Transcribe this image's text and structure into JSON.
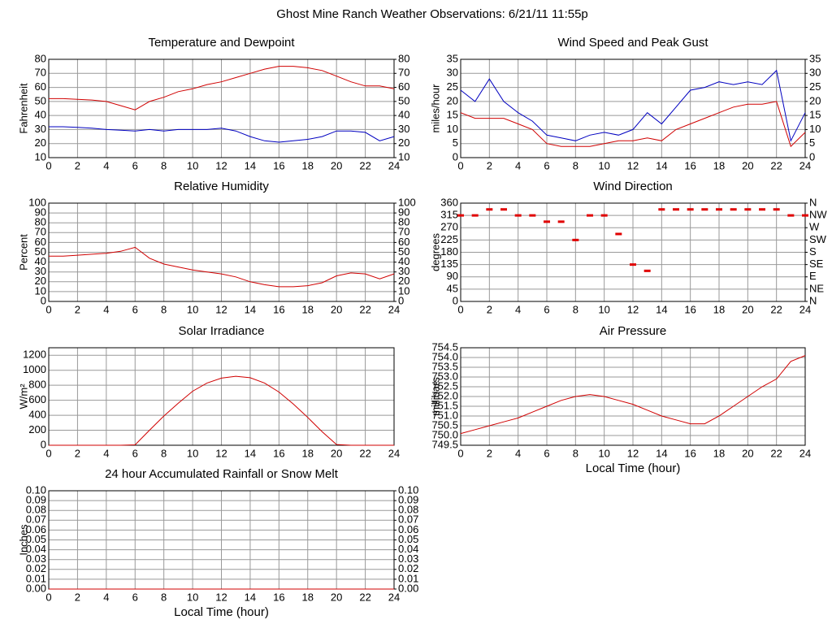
{
  "title": "Ghost Mine Ranch Weather Observations: 6/21/11 11:55p",
  "chart_data": [
    {
      "type": "line",
      "title": "Temperature and Dewpoint",
      "ylabel": "Fahrenheit",
      "grid": true,
      "x": [
        0,
        1,
        2,
        3,
        4,
        5,
        6,
        7,
        8,
        9,
        10,
        11,
        12,
        13,
        14,
        15,
        16,
        17,
        18,
        19,
        20,
        21,
        22,
        23,
        24
      ],
      "series": [
        {
          "color": "#d00000",
          "values": [
            52,
            52,
            51.5,
            51,
            50,
            47,
            44,
            50,
            53,
            57,
            59,
            62,
            64,
            67,
            70,
            73,
            75,
            75,
            74,
            72,
            68,
            64,
            61,
            61,
            59
          ]
        },
        {
          "color": "#0000c0",
          "values": [
            32,
            32,
            31.5,
            31,
            30,
            29.5,
            29,
            30,
            29,
            30,
            30,
            30,
            31,
            29,
            25,
            22,
            21,
            22,
            23,
            25,
            29,
            29,
            28,
            22,
            25
          ]
        }
      ],
      "xlim": [
        0,
        24
      ],
      "xticks": [
        0,
        2,
        4,
        6,
        8,
        10,
        12,
        14,
        16,
        18,
        20,
        22,
        24
      ],
      "ylim": [
        10,
        80
      ],
      "yticks": [
        10,
        20,
        30,
        40,
        50,
        60,
        70,
        80
      ],
      "y2lim": [
        10,
        80
      ],
      "y2ticks": [
        10,
        20,
        30,
        40,
        50,
        60,
        70,
        80
      ]
    },
    {
      "type": "line",
      "title": "Relative Humidity",
      "ylabel": "Percent",
      "grid": true,
      "x": [
        0,
        1,
        2,
        3,
        4,
        5,
        6,
        7,
        8,
        9,
        10,
        11,
        12,
        13,
        14,
        15,
        16,
        17,
        18,
        19,
        20,
        21,
        22,
        23,
        24
      ],
      "series": [
        {
          "color": "#d00000",
          "values": [
            46,
            46,
            47,
            48,
            49,
            51,
            55,
            44,
            38,
            35,
            32,
            30,
            28,
            25,
            20,
            17,
            15,
            15,
            16,
            19,
            26,
            29,
            28,
            23,
            28
          ]
        }
      ],
      "xlim": [
        0,
        24
      ],
      "xticks": [
        0,
        2,
        4,
        6,
        8,
        10,
        12,
        14,
        16,
        18,
        20,
        22,
        24
      ],
      "ylim": [
        0,
        100
      ],
      "yticks": [
        0,
        10,
        20,
        30,
        40,
        50,
        60,
        70,
        80,
        90,
        100
      ],
      "y2lim": [
        0,
        100
      ],
      "y2ticks": [
        0,
        10,
        20,
        30,
        40,
        50,
        60,
        70,
        80,
        90,
        100
      ]
    },
    {
      "type": "line",
      "title": "Solar Irradiance",
      "ylabel": "W/m²",
      "grid": true,
      "x": [
        0,
        1,
        2,
        3,
        4,
        5,
        6,
        7,
        8,
        9,
        10,
        11,
        12,
        13,
        14,
        15,
        16,
        17,
        18,
        19,
        20,
        21,
        22,
        23,
        24
      ],
      "series": [
        {
          "color": "#d00000",
          "values": [
            0,
            0,
            0,
            0,
            0,
            0,
            5,
            200,
            390,
            560,
            720,
            830,
            895,
            920,
            900,
            830,
            710,
            550,
            370,
            180,
            10,
            0,
            0,
            0,
            0
          ]
        }
      ],
      "xlim": [
        0,
        24
      ],
      "xticks": [
        0,
        2,
        4,
        6,
        8,
        10,
        12,
        14,
        16,
        18,
        20,
        22,
        24
      ],
      "ylim": [
        0,
        1300
      ],
      "yticks": [
        0,
        200,
        400,
        600,
        800,
        1000,
        1200
      ]
    },
    {
      "type": "line",
      "title": "24 hour Accumulated Rainfall or Snow Melt",
      "ylabel": "Inches",
      "xlabel": "Local Time (hour)",
      "grid": true,
      "x": [
        0,
        1,
        2,
        3,
        4,
        5,
        6,
        7,
        8,
        9,
        10,
        11,
        12,
        13,
        14,
        15,
        16,
        17,
        18,
        19,
        20,
        21,
        22,
        23,
        24
      ],
      "series": [
        {
          "color": "#d00000",
          "values": [
            0,
            0,
            0,
            0,
            0,
            0,
            0,
            0,
            0,
            0,
            0,
            0,
            0,
            0,
            0,
            0,
            0,
            0,
            0,
            0,
            0,
            0,
            0,
            0,
            0
          ]
        }
      ],
      "xlim": [
        0,
        24
      ],
      "xticks": [
        0,
        2,
        4,
        6,
        8,
        10,
        12,
        14,
        16,
        18,
        20,
        22,
        24
      ],
      "ylim": [
        0,
        0.1
      ],
      "yticks": [
        {
          "value": 0,
          "label": "0.00"
        },
        0.01,
        0.02,
        0.03,
        0.04,
        0.05,
        0.06,
        0.07,
        0.08,
        0.09,
        {
          "value": 0.1,
          "label": "0.10"
        }
      ],
      "y2lim": [
        0,
        0.1
      ],
      "y2ticks": [
        {
          "value": 0,
          "label": "0.00"
        },
        0.01,
        0.02,
        0.03,
        0.04,
        0.05,
        0.06,
        0.07,
        0.08,
        0.09,
        {
          "value": 0.1,
          "label": "0.10"
        }
      ]
    },
    {
      "type": "line",
      "title": "Wind Speed and Peak Gust",
      "ylabel": "miles/hour",
      "grid": true,
      "x": [
        0,
        1,
        2,
        3,
        4,
        5,
        6,
        7,
        8,
        9,
        10,
        11,
        12,
        13,
        14,
        15,
        16,
        17,
        18,
        19,
        20,
        21,
        22,
        23,
        24
      ],
      "series": [
        {
          "color": "#d00000",
          "values": [
            16,
            14,
            14,
            14,
            12,
            10,
            5,
            4,
            4,
            4,
            5,
            6,
            6,
            7,
            6,
            10,
            12,
            14,
            16,
            18,
            19,
            19,
            20,
            4,
            9
          ]
        },
        {
          "color": "#0000c0",
          "values": [
            24,
            20,
            28,
            20,
            16,
            13,
            8,
            7,
            6,
            8,
            9,
            8,
            10,
            16,
            12,
            18,
            24,
            25,
            27,
            26,
            27,
            26,
            31,
            6,
            16
          ]
        }
      ],
      "xlim": [
        0,
        24
      ],
      "xticks": [
        0,
        2,
        4,
        6,
        8,
        10,
        12,
        14,
        16,
        18,
        20,
        22,
        24
      ],
      "ylim": [
        0,
        35
      ],
      "yticks": [
        0,
        5,
        10,
        15,
        20,
        25,
        30,
        35
      ],
      "y2lim": [
        0,
        35
      ],
      "y2ticks": [
        0,
        5,
        10,
        15,
        20,
        25,
        30,
        35
      ]
    },
    {
      "type": "scatter",
      "title": "Wind Direction",
      "ylabel": "degrees",
      "grid": true,
      "x": [
        0,
        1,
        2,
        3,
        4,
        5,
        6,
        7,
        8,
        9,
        10,
        11,
        12,
        13,
        14,
        15,
        16,
        17,
        18,
        19,
        20,
        21,
        22,
        23,
        24
      ],
      "series": [
        {
          "color": "#e00000",
          "values": [
            315,
            315,
            337,
            337,
            315,
            315,
            292,
            292,
            225,
            315,
            315,
            247,
            135,
            112,
            337,
            337,
            337,
            337,
            337,
            337,
            337,
            337,
            337,
            315,
            315
          ]
        }
      ],
      "xlim": [
        0,
        24
      ],
      "xticks": [
        0,
        2,
        4,
        6,
        8,
        10,
        12,
        14,
        16,
        18,
        20,
        22,
        24
      ],
      "ylim": [
        0,
        360
      ],
      "yticks": [
        0,
        45,
        90,
        135,
        180,
        225,
        270,
        315,
        360
      ],
      "y2lim": [
        0,
        360
      ],
      "y2ticks": [
        {
          "value": 0,
          "label": "N"
        },
        {
          "value": 45,
          "label": "NE"
        },
        {
          "value": 90,
          "label": "E"
        },
        {
          "value": 135,
          "label": "SE"
        },
        {
          "value": 180,
          "label": "S"
        },
        {
          "value": 225,
          "label": "SW"
        },
        {
          "value": 270,
          "label": "W"
        },
        {
          "value": 315,
          "label": "NW"
        },
        {
          "value": 360,
          "label": "N"
        }
      ]
    },
    {
      "type": "line",
      "title": "Air Pressure",
      "ylabel": "millibars",
      "xlabel": "Local Time (hour)",
      "grid": true,
      "x": [
        0,
        1,
        2,
        3,
        4,
        5,
        6,
        7,
        8,
        9,
        10,
        11,
        12,
        13,
        14,
        15,
        16,
        17,
        18,
        19,
        20,
        21,
        22,
        23,
        24
      ],
      "series": [
        {
          "color": "#d00000",
          "values": [
            750.1,
            750.3,
            750.5,
            750.7,
            750.9,
            751.2,
            751.5,
            751.8,
            752.0,
            752.1,
            752.0,
            751.8,
            751.6,
            751.3,
            751.0,
            750.8,
            750.6,
            750.6,
            751.0,
            751.5,
            752.0,
            752.5,
            752.9,
            753.8,
            754.1
          ]
        }
      ],
      "xlim": [
        0,
        24
      ],
      "xticks": [
        0,
        2,
        4,
        6,
        8,
        10,
        12,
        14,
        16,
        18,
        20,
        22,
        24
      ],
      "ylim": [
        749.5,
        754.5
      ],
      "yticks": [
        749.5,
        {
          "value": 750,
          "label": "750.0"
        },
        750.5,
        {
          "value": 751,
          "label": "751.0"
        },
        751.5,
        {
          "value": 752,
          "label": "752.0"
        },
        752.5,
        {
          "value": 753,
          "label": "753.0"
        },
        753.5,
        {
          "value": 754,
          "label": "754.0"
        },
        754.5
      ]
    }
  ]
}
